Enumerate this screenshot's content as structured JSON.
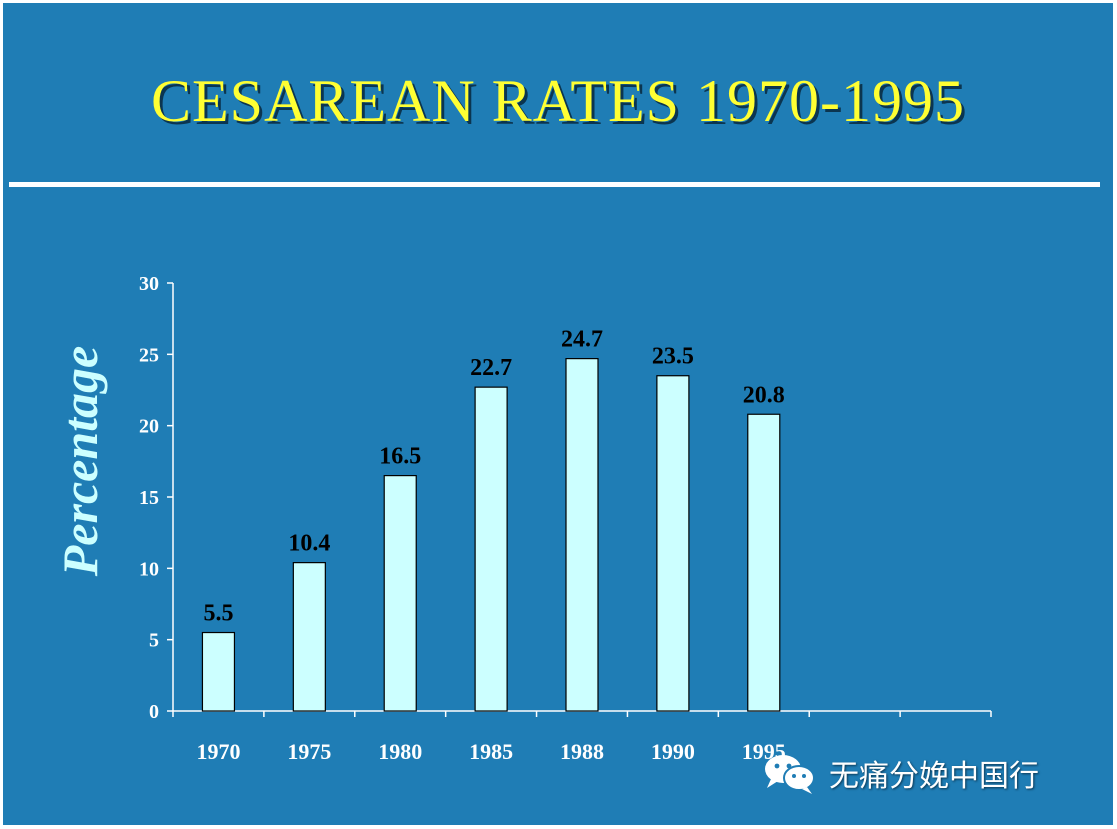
{
  "slide": {
    "title": "CESAREAN RATES 1970-1995",
    "watermark": {
      "text": "无痛分娩中国行",
      "icon": "wechat-icon"
    }
  },
  "colors": {
    "background": "#1f7db5",
    "title": "#ffff33",
    "bar_fill": "#ccffff",
    "axis": "#ffffff",
    "ylabel": "#ccffff"
  },
  "chart_data": {
    "type": "bar",
    "title": "",
    "xlabel": "",
    "ylabel": "Percentage",
    "categories": [
      "1970",
      "1975",
      "1980",
      "1985",
      "1988",
      "1990",
      "1995"
    ],
    "values": [
      5.5,
      10.4,
      16.5,
      22.7,
      24.7,
      23.5,
      20.8
    ],
    "data_labels": [
      "5.5",
      "10.4",
      "16.5",
      "22.7",
      "24.7",
      "23.5",
      "20.8"
    ],
    "ylim": [
      0,
      30
    ],
    "yticks": [
      0,
      5,
      10,
      15,
      20,
      25,
      30
    ],
    "category_slots": 9,
    "grid": false,
    "legend": "none"
  }
}
